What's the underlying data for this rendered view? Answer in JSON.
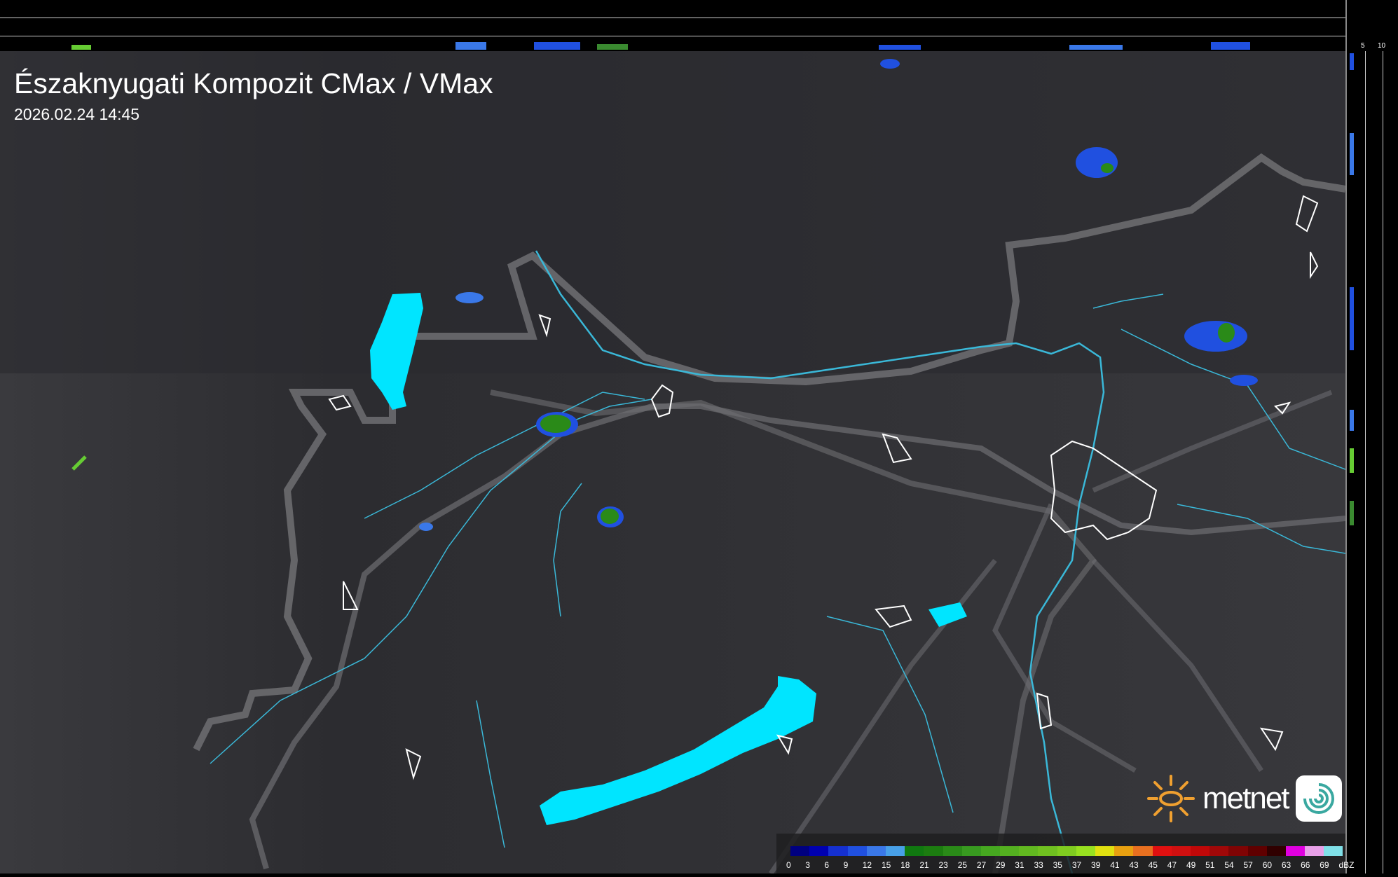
{
  "title": "Északnyugati Kompozit CMax / VMax",
  "timestamp": "2026.02.24 14:45",
  "side_profile": {
    "top_ticks": [
      "10",
      "5"
    ],
    "right_ticks": [
      "5",
      "10"
    ]
  },
  "legend": {
    "unit": "dBZ",
    "labels": [
      "0",
      "3",
      "6",
      "9",
      "12",
      "15",
      "18",
      "21",
      "23",
      "25",
      "27",
      "29",
      "31",
      "33",
      "35",
      "37",
      "39",
      "41",
      "43",
      "45",
      "47",
      "49",
      "51",
      "54",
      "57",
      "60",
      "63",
      "66",
      "69"
    ],
    "colors": [
      "#000080",
      "#0000b0",
      "#1530d0",
      "#2050e0",
      "#3a78e8",
      "#48a0e8",
      "#107810",
      "#1c7c10",
      "#2a8a18",
      "#389a20",
      "#46a820",
      "#54b020",
      "#62b820",
      "#70c020",
      "#80cc20",
      "#98e020",
      "#e0e010",
      "#e8a010",
      "#e87020",
      "#e01010",
      "#d01010",
      "#c00808",
      "#a00808",
      "#800404",
      "#600000",
      "#300000",
      "#e000e0",
      "#e8a0e8",
      "#80e0e8"
    ]
  },
  "logo": {
    "text": "metnet",
    "colors": {
      "sun": "#f0a030",
      "badge": "#3aa8a0"
    }
  },
  "map_colors": {
    "water": "#00e5ff",
    "rivers": "#3ab8d8",
    "borders": "#7a7a7e",
    "settlements": "#ffffff"
  }
}
